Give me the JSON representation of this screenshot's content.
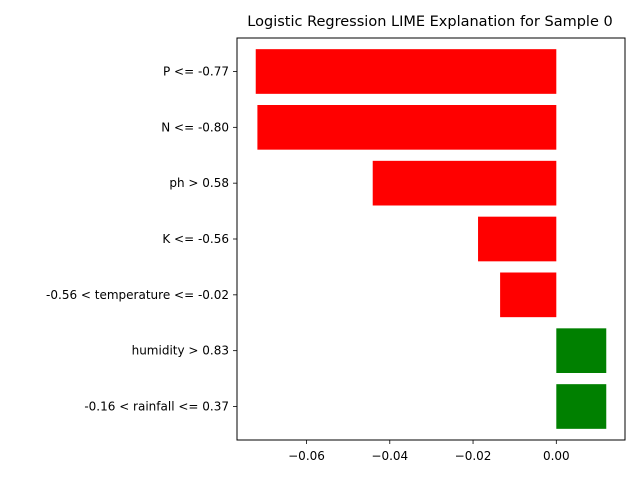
{
  "chart_data": {
    "type": "bar",
    "orientation": "horizontal",
    "title": "Logistic Regression LIME Explanation for Sample 0",
    "xlabel": "",
    "ylabel": "",
    "categories": [
      "P <= -0.77",
      "N <= -0.80",
      "ph > 0.58",
      "K <= -0.56",
      "-0.56 < temperature <= -0.02",
      "humidity > 0.83",
      "-0.16 < rainfall <= 0.37"
    ],
    "values": [
      -0.0722,
      -0.0718,
      -0.0441,
      -0.0188,
      -0.0135,
      0.012,
      0.012
    ],
    "xlim": [
      -0.0767,
      0.0165
    ],
    "xticks": [
      -0.06,
      -0.04,
      -0.02,
      0.0
    ],
    "xtick_labels": [
      "−0.06",
      "−0.04",
      "−0.02",
      "0.00"
    ],
    "colors": {
      "negative": "#ff0000",
      "positive": "#008000"
    },
    "grid": false,
    "legend": "none"
  }
}
